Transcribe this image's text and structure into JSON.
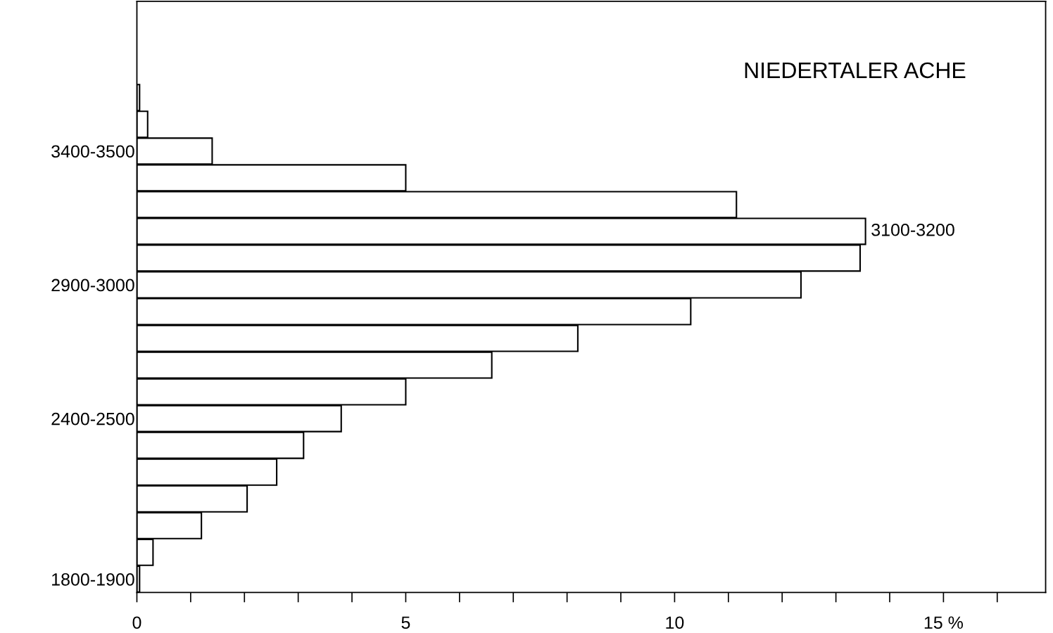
{
  "chart_data": {
    "type": "bar",
    "orientation": "horizontal",
    "title": "NIEDERTALER ACHE",
    "categories": [
      null,
      null,
      "3400-3500",
      null,
      null,
      null,
      null,
      "2900-3000",
      null,
      null,
      null,
      null,
      "2400-2500",
      null,
      null,
      null,
      null,
      null,
      "1800-1900"
    ],
    "values": [
      0.05,
      0.2,
      1.4,
      5.0,
      11.15,
      13.55,
      13.45,
      12.35,
      10.3,
      8.2,
      6.6,
      5.0,
      3.8,
      3.1,
      2.6,
      2.05,
      1.2,
      0.3,
      0.05
    ],
    "color": "#ffffff",
    "xlim": [
      0,
      16.9
    ],
    "xticks": [
      0,
      {
        "value": 1,
        "label": null
      },
      {
        "value": 2,
        "label": null
      },
      {
        "value": 3,
        "label": null
      },
      {
        "value": 4,
        "label": null
      },
      5,
      {
        "value": 6,
        "label": null
      },
      {
        "value": 7,
        "label": null
      },
      {
        "value": 8,
        "label": null
      },
      {
        "value": 9,
        "label": null
      },
      10,
      {
        "value": 11,
        "label": null
      },
      {
        "value": 12,
        "label": null
      },
      {
        "value": 13,
        "label": null
      },
      {
        "value": 14,
        "label": null
      },
      {
        "value": 15,
        "label": "15 %"
      },
      {
        "value": 16,
        "label": null
      }
    ],
    "annotations": [
      {
        "text": "3100-3200",
        "x": 13.55
      }
    ],
    "grid": false,
    "legend": false
  }
}
